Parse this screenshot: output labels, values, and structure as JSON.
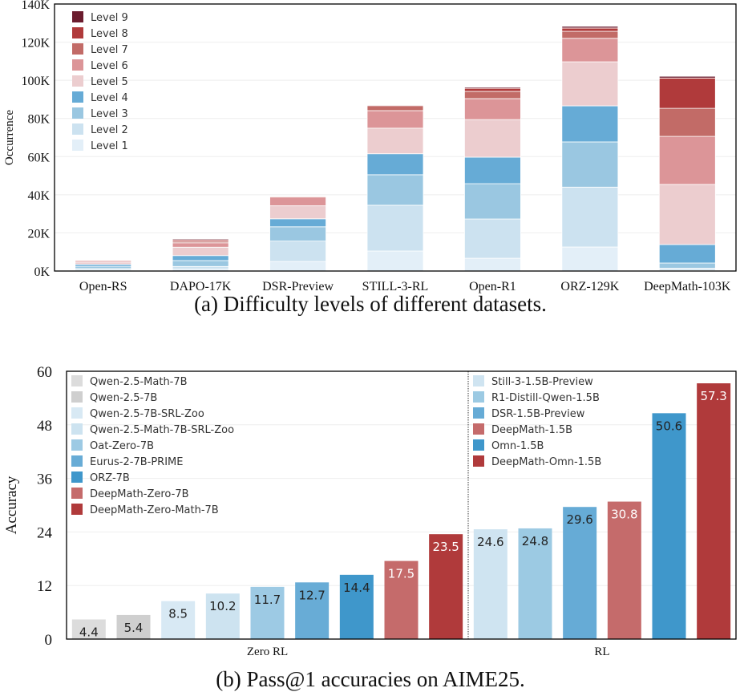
{
  "chart_data": [
    {
      "type": "bar",
      "stacked": true,
      "caption": "(a) Difficulty levels of different datasets.",
      "ylabel": "Occurrence",
      "ylim": [
        0,
        140000
      ],
      "yticks": [
        0,
        20000,
        40000,
        60000,
        80000,
        100000,
        120000,
        140000
      ],
      "ytick_labels": [
        "0K",
        "20K",
        "40K",
        "60K",
        "80K",
        "100K",
        "120K",
        "140K"
      ],
      "grid": true,
      "legend_placement": "top-left",
      "categories": [
        "Open-RS",
        "DAPO-17K",
        "DSR-Preview",
        "STILL-3-RL",
        "Open-R1",
        "ORZ-129K",
        "DeepMath-103K"
      ],
      "series": [
        {
          "name": "Level 1",
          "color": "#e3eff8",
          "values": [
            500,
            1000,
            5000,
            10500,
            6700,
            12600,
            500
          ]
        },
        {
          "name": "Level 2",
          "color": "#cce2f0",
          "values": [
            800,
            1400,
            10700,
            24000,
            20600,
            31400,
            1000
          ]
        },
        {
          "name": "Level 3",
          "color": "#9ac7e1",
          "values": [
            1200,
            3100,
            7500,
            16000,
            18500,
            23700,
            2700
          ]
        },
        {
          "name": "Level 4",
          "color": "#66abd6",
          "values": [
            1000,
            2600,
            4200,
            11000,
            13900,
            18900,
            9700
          ]
        },
        {
          "name": "Level 5",
          "color": "#eccdcf",
          "values": [
            1200,
            4400,
            6800,
            13400,
            19700,
            23100,
            31500
          ]
        },
        {
          "name": "Level 6",
          "color": "#dc9598",
          "values": [
            800,
            2300,
            4600,
            9200,
            11000,
            12300,
            25200
          ]
        },
        {
          "name": "Level 7",
          "color": "#c26b67",
          "values": [
            200,
            700,
            400,
            2600,
            3800,
            3700,
            14700
          ]
        },
        {
          "name": "Level 8",
          "color": "#b03a3b",
          "values": [
            100,
            800,
            200,
            400,
            1600,
            1700,
            15900
          ]
        },
        {
          "name": "Level 9",
          "color": "#6b1c2e",
          "values": [
            50,
            500,
            100,
            300,
            600,
            900,
            900
          ]
        }
      ]
    },
    {
      "type": "bar",
      "caption": "(b) Pass@1 accuracies on AIME25.",
      "ylabel": "Accuracy",
      "ylim": [
        0,
        60
      ],
      "yticks": [
        0,
        12,
        24,
        36,
        48,
        60
      ],
      "grid": true,
      "groups": [
        {
          "label": "Zero RL",
          "legend_placement": "top-left",
          "bars": [
            {
              "name": "Qwen-2.5-Math-7B",
              "value": 4.4,
              "color": "#dcdcdc"
            },
            {
              "name": "Qwen-2.5-7B",
              "value": 5.4,
              "color": "#cfcfcf"
            },
            {
              "name": "Qwen-2.5-7B-SRL-Zoo",
              "value": 8.5,
              "color": "#d8e9f4"
            },
            {
              "name": "Qwen-2.5-Math-7B-SRL-Zoo",
              "value": 10.2,
              "color": "#cde3f0"
            },
            {
              "name": "Oat-Zero-7B",
              "value": 11.7,
              "color": "#9dcae4"
            },
            {
              "name": "Eurus-2-7B-PRIME",
              "value": 12.7,
              "color": "#68acd6"
            },
            {
              "name": "ORZ-7B",
              "value": 14.4,
              "color": "#3f97cb"
            },
            {
              "name": "DeepMath-Zero-7B",
              "value": 17.5,
              "color": "#c56b6b"
            },
            {
              "name": "DeepMath-Zero-Math-7B",
              "value": 23.5,
              "color": "#b03a3b"
            }
          ]
        },
        {
          "label": "RL",
          "legend_placement": "top-left",
          "bars": [
            {
              "name": "Still-3-1.5B-Preview",
              "value": 24.6,
              "color": "#cfe4f1"
            },
            {
              "name": "R1-Distill-Qwen-1.5B",
              "value": 24.8,
              "color": "#9ccae3"
            },
            {
              "name": "DSR-1.5B-Preview",
              "value": 29.6,
              "color": "#66abd6"
            },
            {
              "name": "DeepMath-1.5B",
              "value": 30.8,
              "color": "#c56b6b"
            },
            {
              "name": "Omn-1.5B",
              "value": 50.6,
              "color": "#3f97cb"
            },
            {
              "name": "DeepMath-Omn-1.5B",
              "value": 57.3,
              "color": "#b03a3b"
            }
          ]
        }
      ]
    }
  ]
}
